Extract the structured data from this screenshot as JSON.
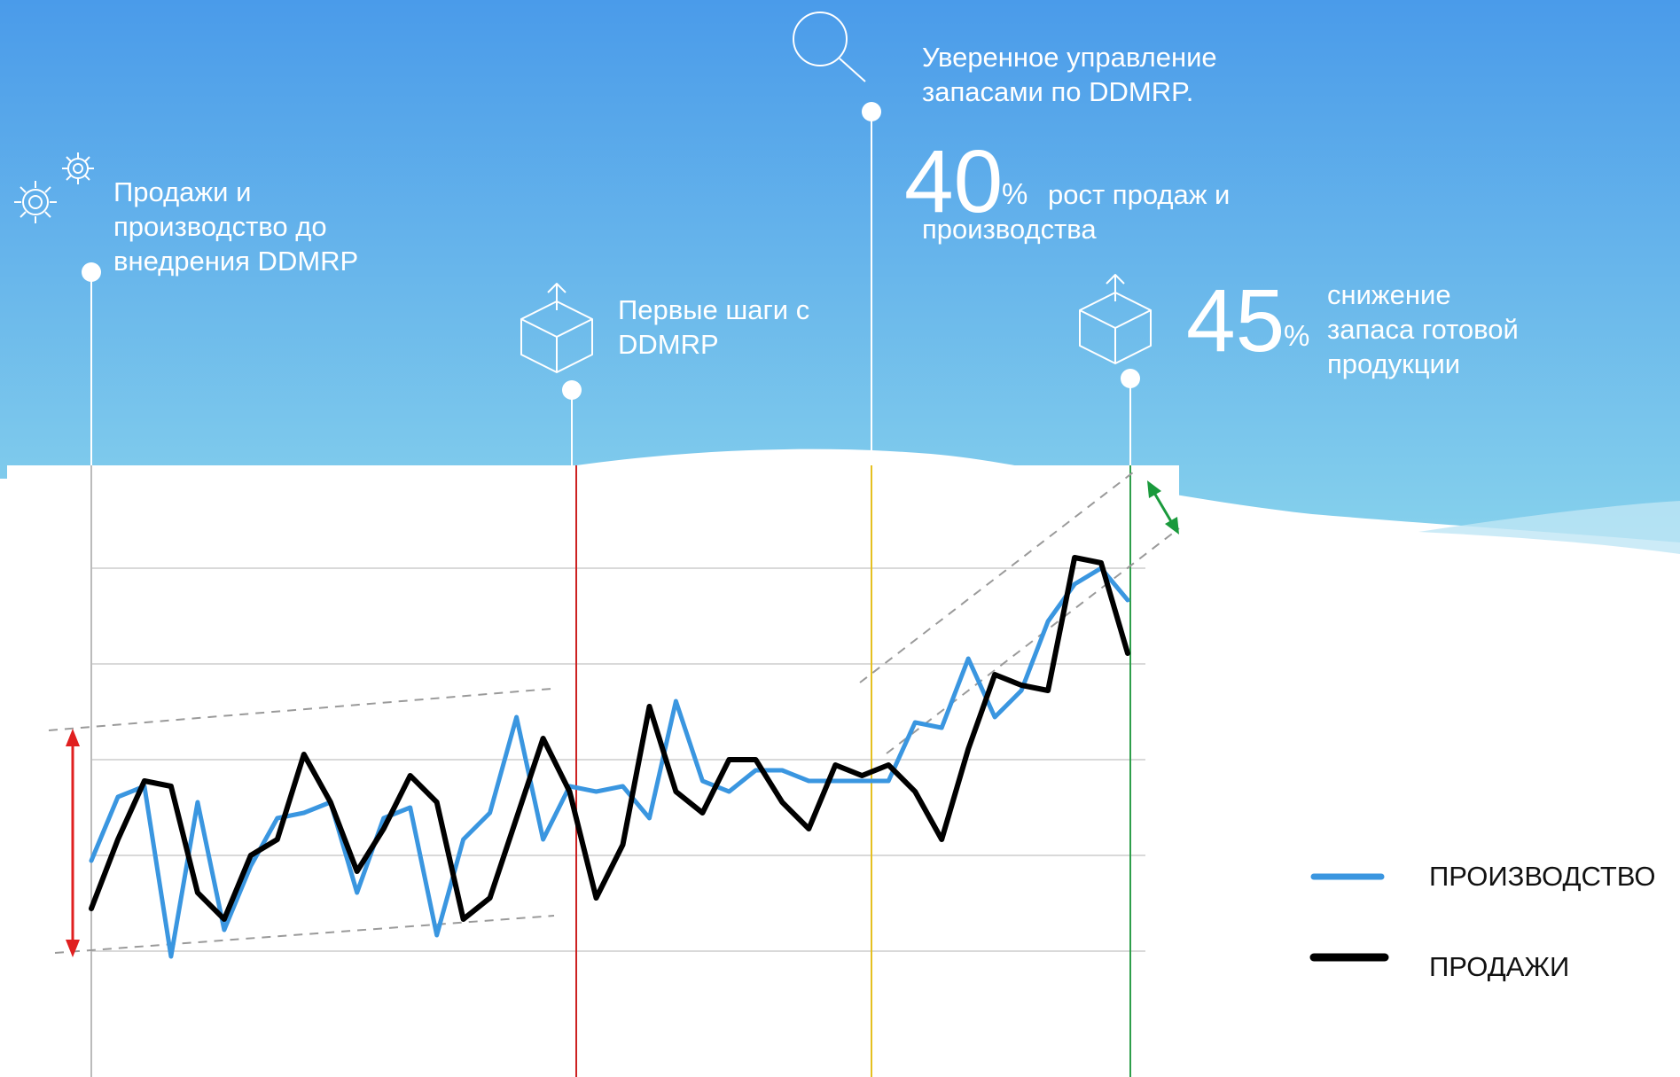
{
  "milestones": [
    {
      "id": "before",
      "icon": "gears-icon",
      "text": "Продажи и производство до внедрения DDMRP"
    },
    {
      "id": "first-steps",
      "icon": "box-upload-icon",
      "text": "Первые шаги с DDMRP"
    },
    {
      "id": "confident",
      "icon": "magnifier-icon",
      "text": "Уверенное управление запасами по DDMRP."
    },
    {
      "id": "result",
      "icon": "box-upload-icon",
      "text": ""
    }
  ],
  "stats": [
    {
      "value": "40",
      "unit": "%",
      "text": "рост продаж и производства"
    },
    {
      "value": "45",
      "unit": "%",
      "text": "снижение запаса готовой продукции"
    }
  ],
  "chart_data": {
    "type": "line",
    "x": [
      1,
      2,
      3,
      4,
      5,
      6,
      7,
      8,
      9,
      10,
      11,
      12,
      13,
      14,
      15,
      16,
      17,
      18,
      19,
      20,
      21,
      22,
      23,
      24,
      25,
      26,
      27,
      28,
      29,
      30,
      31,
      32,
      33,
      34,
      35,
      36,
      37,
      38,
      39,
      40
    ],
    "grid": true,
    "ylim": [
      0,
      10
    ],
    "phase_lines": [
      {
        "x": 1,
        "color": "#bbbbbb"
      },
      {
        "x": 19.8,
        "color": "#cc2222"
      },
      {
        "x": 31,
        "color": "#e5c020"
      },
      {
        "x": 41,
        "color": "#2e9e4a"
      }
    ],
    "series": [
      {
        "name": "ПРОИЗВОДСТВО",
        "color": "#3a96e0",
        "values": [
          2.9,
          4.1,
          4.3,
          1.1,
          4.0,
          1.6,
          2.8,
          3.7,
          3.8,
          4.0,
          2.3,
          3.7,
          3.9,
          1.5,
          3.3,
          3.8,
          5.6,
          3.3,
          4.3,
          4.2,
          4.3,
          3.7,
          5.9,
          4.4,
          4.2,
          4.6,
          4.6,
          4.4,
          4.4,
          4.4,
          4.4,
          5.5,
          5.4,
          6.7,
          5.6,
          6.1,
          7.4,
          8.1,
          8.4,
          7.8
        ]
      },
      {
        "name": "ПРОДАЖИ",
        "color": "#000000",
        "values": [
          2.0,
          3.3,
          4.4,
          4.3,
          2.3,
          1.8,
          3.0,
          3.3,
          4.9,
          4.0,
          2.7,
          3.5,
          4.5,
          4.0,
          1.8,
          2.2,
          3.7,
          5.2,
          4.2,
          2.2,
          3.2,
          5.8,
          4.2,
          3.8,
          4.8,
          4.8,
          4.0,
          3.5,
          4.7,
          4.5,
          4.7,
          4.2,
          3.3,
          5.0,
          6.4,
          6.2,
          6.1,
          8.6,
          8.5,
          6.8
        ]
      }
    ]
  },
  "legend": [
    {
      "label": "ПРОИЗВОДСТВО",
      "color": "#3a96e0"
    },
    {
      "label": "ПРОДАЖИ",
      "color": "#000000"
    }
  ]
}
